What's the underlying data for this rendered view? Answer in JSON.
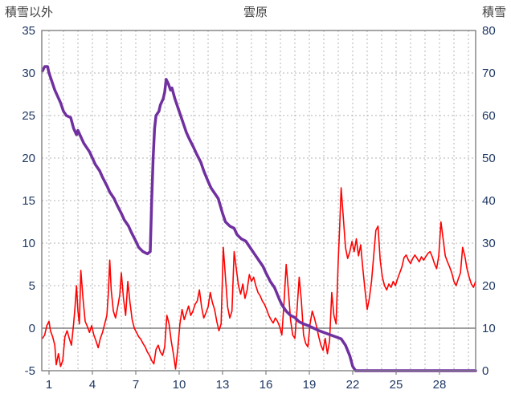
{
  "header": {
    "left_label": "積雪以外",
    "title": "雲原",
    "right_label": "積雪"
  },
  "chart_data": {
    "type": "line",
    "title": "雲原",
    "left_axis": {
      "label": "積雪以外",
      "min": -5,
      "max": 35,
      "ticks": [
        35,
        30,
        25,
        20,
        15,
        10,
        5,
        0,
        -5
      ]
    },
    "right_axis": {
      "label": "積雪",
      "min": 0,
      "max": 80,
      "ticks": [
        80,
        70,
        60,
        50,
        40,
        30,
        20,
        10,
        0
      ]
    },
    "x_axis": {
      "min": 0.5,
      "max": 30.5,
      "tick_labels": [
        1,
        4,
        7,
        10,
        13,
        16,
        19,
        22,
        25,
        28
      ],
      "grid_step": 1
    },
    "grid": {
      "color": "#b3b3b3",
      "dash": "2 3"
    },
    "zero_line_color": "#808080",
    "border_color": "#808080",
    "tick_label_color": "#1F3864",
    "header_color": "#404040",
    "series": [
      {
        "name": "積雪以外",
        "axis": "left",
        "color": "#FF0000",
        "width": 1.6,
        "points": [
          [
            0.55,
            -1.2
          ],
          [
            0.7,
            -0.8
          ],
          [
            0.85,
            0.3
          ],
          [
            1.0,
            0.8
          ],
          [
            1.1,
            -0.3
          ],
          [
            1.25,
            -1
          ],
          [
            1.4,
            -2
          ],
          [
            1.5,
            -4.3
          ],
          [
            1.65,
            -3
          ],
          [
            1.8,
            -4.5
          ],
          [
            1.95,
            -3.8
          ],
          [
            2.1,
            -1
          ],
          [
            2.25,
            -0.3
          ],
          [
            2.4,
            -1.2
          ],
          [
            2.55,
            -2
          ],
          [
            2.7,
            0.5
          ],
          [
            2.8,
            2.5
          ],
          [
            2.9,
            5
          ],
          [
            3.0,
            2
          ],
          [
            3.1,
            0.5
          ],
          [
            3.2,
            6.8
          ],
          [
            3.35,
            3.5
          ],
          [
            3.5,
            0.8
          ],
          [
            3.65,
            0.2
          ],
          [
            3.8,
            -0.5
          ],
          [
            3.95,
            0.3
          ],
          [
            4.1,
            -0.8
          ],
          [
            4.25,
            -1.5
          ],
          [
            4.4,
            -2.3
          ],
          [
            4.55,
            -1.2
          ],
          [
            4.7,
            -0.5
          ],
          [
            4.85,
            0.5
          ],
          [
            5.0,
            1.5
          ],
          [
            5.1,
            4
          ],
          [
            5.2,
            8
          ],
          [
            5.3,
            4.5
          ],
          [
            5.45,
            2
          ],
          [
            5.6,
            1.2
          ],
          [
            5.75,
            2.5
          ],
          [
            5.9,
            4
          ],
          [
            6.0,
            6.5
          ],
          [
            6.15,
            3.5
          ],
          [
            6.3,
            1.5
          ],
          [
            6.45,
            5.5
          ],
          [
            6.6,
            3
          ],
          [
            6.75,
            1
          ],
          [
            6.9,
            0
          ],
          [
            7.05,
            -0.5
          ],
          [
            7.2,
            -1
          ],
          [
            7.35,
            -1.3
          ],
          [
            7.5,
            -1.8
          ],
          [
            7.65,
            -2.2
          ],
          [
            7.8,
            -2.8
          ],
          [
            7.95,
            -3.2
          ],
          [
            8.1,
            -3.8
          ],
          [
            8.25,
            -4.2
          ],
          [
            8.4,
            -2.5
          ],
          [
            8.55,
            -2
          ],
          [
            8.7,
            -2.8
          ],
          [
            8.85,
            -3.2
          ],
          [
            9.0,
            -2.2
          ],
          [
            9.15,
            1.5
          ],
          [
            9.3,
            0.5
          ],
          [
            9.45,
            -1.5
          ],
          [
            9.6,
            -3
          ],
          [
            9.75,
            -4.8
          ],
          [
            9.9,
            -2.5
          ],
          [
            10.05,
            0.5
          ],
          [
            10.2,
            2.2
          ],
          [
            10.35,
            1
          ],
          [
            10.5,
            1.8
          ],
          [
            10.65,
            2.6
          ],
          [
            10.8,
            1.5
          ],
          [
            10.95,
            2
          ],
          [
            11.1,
            2.8
          ],
          [
            11.25,
            3.2
          ],
          [
            11.4,
            4.5
          ],
          [
            11.55,
            2.5
          ],
          [
            11.7,
            1.2
          ],
          [
            11.85,
            1.8
          ],
          [
            12.0,
            2.5
          ],
          [
            12.15,
            4.2
          ],
          [
            12.3,
            3
          ],
          [
            12.45,
            2.2
          ],
          [
            12.6,
            0.8
          ],
          [
            12.75,
            -0.3
          ],
          [
            12.9,
            0.5
          ],
          [
            13.05,
            9.5
          ],
          [
            13.2,
            6
          ],
          [
            13.35,
            2.5
          ],
          [
            13.5,
            1.2
          ],
          [
            13.65,
            2
          ],
          [
            13.8,
            9
          ],
          [
            13.95,
            7
          ],
          [
            14.1,
            5
          ],
          [
            14.25,
            4
          ],
          [
            14.4,
            5.2
          ],
          [
            14.55,
            3.5
          ],
          [
            14.7,
            4.5
          ],
          [
            14.85,
            6.3
          ],
          [
            15.0,
            5.5
          ],
          [
            15.15,
            6
          ],
          [
            15.3,
            5
          ],
          [
            15.45,
            4.2
          ],
          [
            15.6,
            3.8
          ],
          [
            15.75,
            3.2
          ],
          [
            15.9,
            2.8
          ],
          [
            16.05,
            2.2
          ],
          [
            16.2,
            1.5
          ],
          [
            16.35,
            1
          ],
          [
            16.5,
            0.6
          ],
          [
            16.65,
            1.2
          ],
          [
            16.8,
            0.8
          ],
          [
            16.95,
            0.2
          ],
          [
            17.1,
            -0.8
          ],
          [
            17.25,
            3
          ],
          [
            17.4,
            7.5
          ],
          [
            17.55,
            4.5
          ],
          [
            17.7,
            1
          ],
          [
            17.85,
            -0.8
          ],
          [
            18.0,
            -1.2
          ],
          [
            18.15,
            2.2
          ],
          [
            18.3,
            6
          ],
          [
            18.45,
            3.2
          ],
          [
            18.6,
            -0.8
          ],
          [
            18.75,
            -1.8
          ],
          [
            18.9,
            -2.2
          ],
          [
            19.05,
            0.5
          ],
          [
            19.2,
            2
          ],
          [
            19.35,
            1.2
          ],
          [
            19.5,
            0.2
          ],
          [
            19.65,
            -1
          ],
          [
            19.8,
            -2
          ],
          [
            19.95,
            -2.6
          ],
          [
            20.1,
            -1.2
          ],
          [
            20.25,
            -3
          ],
          [
            20.4,
            -1.5
          ],
          [
            20.55,
            4.2
          ],
          [
            20.7,
            1.5
          ],
          [
            20.85,
            0.5
          ],
          [
            21.0,
            8
          ],
          [
            21.1,
            12
          ],
          [
            21.2,
            16.5
          ],
          [
            21.35,
            13
          ],
          [
            21.5,
            9.5
          ],
          [
            21.65,
            8.2
          ],
          [
            21.8,
            9
          ],
          [
            21.95,
            10.2
          ],
          [
            22.1,
            9
          ],
          [
            22.25,
            10.5
          ],
          [
            22.4,
            8.5
          ],
          [
            22.55,
            9.8
          ],
          [
            22.7,
            7
          ],
          [
            22.85,
            4.5
          ],
          [
            23.0,
            2.2
          ],
          [
            23.15,
            3.5
          ],
          [
            23.3,
            5.5
          ],
          [
            23.45,
            8.5
          ],
          [
            23.6,
            11.5
          ],
          [
            23.75,
            12
          ],
          [
            23.9,
            8
          ],
          [
            24.05,
            6
          ],
          [
            24.2,
            5
          ],
          [
            24.35,
            4.5
          ],
          [
            24.5,
            5.2
          ],
          [
            24.65,
            4.8
          ],
          [
            24.8,
            5.5
          ],
          [
            24.95,
            5
          ],
          [
            25.1,
            5.8
          ],
          [
            25.25,
            6.5
          ],
          [
            25.4,
            7.2
          ],
          [
            25.55,
            8.3
          ],
          [
            25.7,
            8.6
          ],
          [
            25.85,
            8
          ],
          [
            26.0,
            7.6
          ],
          [
            26.15,
            8.2
          ],
          [
            26.3,
            8.6
          ],
          [
            26.45,
            8.2
          ],
          [
            26.6,
            7.8
          ],
          [
            26.75,
            8.4
          ],
          [
            26.9,
            8
          ],
          [
            27.05,
            8.4
          ],
          [
            27.2,
            8.8
          ],
          [
            27.35,
            9
          ],
          [
            27.5,
            8.4
          ],
          [
            27.65,
            7.6
          ],
          [
            27.8,
            7
          ],
          [
            27.95,
            8.5
          ],
          [
            28.1,
            12.5
          ],
          [
            28.25,
            10.5
          ],
          [
            28.4,
            8.5
          ],
          [
            28.55,
            7.8
          ],
          [
            28.7,
            7.2
          ],
          [
            28.85,
            6.5
          ],
          [
            29.0,
            5.5
          ],
          [
            29.15,
            5
          ],
          [
            29.3,
            5.8
          ],
          [
            29.45,
            6.5
          ],
          [
            29.6,
            9.5
          ],
          [
            29.75,
            8.5
          ],
          [
            29.9,
            7
          ],
          [
            30.05,
            6
          ],
          [
            30.2,
            5.2
          ],
          [
            30.35,
            4.8
          ],
          [
            30.5,
            5.5
          ]
        ]
      },
      {
        "name": "積雪",
        "axis": "right",
        "color": "#7030A0",
        "width": 3.5,
        "points": [
          [
            0.55,
            70.5
          ],
          [
            0.7,
            71.5
          ],
          [
            0.9,
            71.5
          ],
          [
            1.0,
            70
          ],
          [
            1.2,
            68
          ],
          [
            1.4,
            66
          ],
          [
            1.6,
            64.5
          ],
          [
            1.8,
            63
          ],
          [
            2.0,
            61
          ],
          [
            2.2,
            60
          ],
          [
            2.5,
            59.5
          ],
          [
            2.7,
            57
          ],
          [
            2.9,
            55.5
          ],
          [
            3.0,
            56.5
          ],
          [
            3.2,
            55
          ],
          [
            3.4,
            53.5
          ],
          [
            3.6,
            52.5
          ],
          [
            3.8,
            51.5
          ],
          [
            4.0,
            50
          ],
          [
            4.2,
            48.5
          ],
          [
            4.5,
            47
          ],
          [
            4.7,
            45.5
          ],
          [
            5.0,
            43.5
          ],
          [
            5.2,
            42
          ],
          [
            5.5,
            40.5
          ],
          [
            5.7,
            39
          ],
          [
            6.0,
            37
          ],
          [
            6.2,
            35.5
          ],
          [
            6.5,
            34
          ],
          [
            6.7,
            32.5
          ],
          [
            7.0,
            30.5
          ],
          [
            7.2,
            29
          ],
          [
            7.5,
            28
          ],
          [
            7.8,
            27.5
          ],
          [
            8.0,
            28
          ],
          [
            8.1,
            40
          ],
          [
            8.2,
            50
          ],
          [
            8.3,
            57
          ],
          [
            8.4,
            60
          ],
          [
            8.6,
            61
          ],
          [
            8.7,
            62.5
          ],
          [
            8.9,
            64
          ],
          [
            9.0,
            65.5
          ],
          [
            9.1,
            68.5
          ],
          [
            9.25,
            67.5
          ],
          [
            9.4,
            66
          ],
          [
            9.5,
            66.5
          ],
          [
            9.7,
            64
          ],
          [
            9.9,
            62
          ],
          [
            10.1,
            60
          ],
          [
            10.3,
            58
          ],
          [
            10.5,
            56
          ],
          [
            10.7,
            54.5
          ],
          [
            11.0,
            52.5
          ],
          [
            11.2,
            51
          ],
          [
            11.5,
            49
          ],
          [
            11.7,
            47
          ],
          [
            12.0,
            44.5
          ],
          [
            12.2,
            43
          ],
          [
            12.5,
            41.5
          ],
          [
            12.7,
            40.5
          ],
          [
            13.0,
            37
          ],
          [
            13.2,
            35
          ],
          [
            13.5,
            34
          ],
          [
            13.8,
            33.5
          ],
          [
            14.0,
            32
          ],
          [
            14.3,
            31
          ],
          [
            14.6,
            30.5
          ],
          [
            15.0,
            28.5
          ],
          [
            15.2,
            27.5
          ],
          [
            15.5,
            26
          ],
          [
            15.8,
            24.5
          ],
          [
            16.0,
            23
          ],
          [
            16.3,
            21
          ],
          [
            16.6,
            19.5
          ],
          [
            16.9,
            17
          ],
          [
            17.1,
            15.5
          ],
          [
            17.4,
            14
          ],
          [
            17.7,
            13
          ],
          [
            18.0,
            12.5
          ],
          [
            18.3,
            11.5
          ],
          [
            18.6,
            11
          ],
          [
            19.0,
            10.5
          ],
          [
            19.3,
            10
          ],
          [
            19.6,
            9.5
          ],
          [
            20.0,
            9
          ],
          [
            20.4,
            8.5
          ],
          [
            20.8,
            8
          ],
          [
            21.2,
            7.5
          ],
          [
            21.5,
            6
          ],
          [
            21.8,
            3.5
          ],
          [
            22.0,
            1
          ],
          [
            22.2,
            0
          ],
          [
            23,
            0
          ],
          [
            24,
            0
          ],
          [
            25,
            0
          ],
          [
            26,
            0
          ],
          [
            27,
            0
          ],
          [
            28,
            0
          ],
          [
            29,
            0
          ],
          [
            30,
            0
          ],
          [
            30.5,
            0
          ]
        ]
      }
    ]
  }
}
